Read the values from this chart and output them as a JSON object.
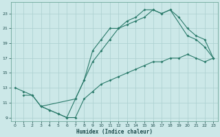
{
  "xlabel": "Humidex (Indice chaleur)",
  "bg_color": "#cce8e8",
  "grid_color": "#aacfcf",
  "line_color": "#2a7a6a",
  "xlim": [
    -0.5,
    23.5
  ],
  "ylim": [
    8.5,
    24.5
  ],
  "xticks": [
    0,
    1,
    2,
    3,
    4,
    5,
    6,
    7,
    8,
    9,
    10,
    11,
    12,
    13,
    14,
    15,
    16,
    17,
    18,
    19,
    20,
    21,
    22,
    23
  ],
  "yticks": [
    9,
    11,
    13,
    15,
    17,
    19,
    21,
    23
  ],
  "line1_x": [
    0,
    1,
    2,
    3,
    7,
    8,
    9,
    10,
    11,
    12,
    13,
    14,
    15,
    16,
    17,
    18,
    20,
    21,
    22,
    23
  ],
  "line1_y": [
    13,
    12.5,
    12,
    10.5,
    11.5,
    14,
    18,
    19.5,
    21,
    21,
    22,
    22.5,
    23.5,
    23.5,
    23,
    23.5,
    20,
    19.5,
    18.5,
    17
  ],
  "line2_x": [
    3,
    4,
    5,
    6,
    7,
    8,
    9,
    10,
    11,
    12,
    13,
    14,
    15,
    16,
    17,
    18,
    19,
    20,
    21,
    22,
    23
  ],
  "line2_y": [
    10.5,
    10,
    9.5,
    9,
    11.5,
    14,
    16.5,
    18,
    19.5,
    21,
    21.5,
    22,
    22.5,
    23.5,
    23,
    23.5,
    22.5,
    21,
    20,
    19.5,
    17
  ],
  "line3_x": [
    1,
    2,
    3,
    4,
    5,
    6,
    7,
    8,
    9,
    10,
    11,
    12,
    13,
    14,
    15,
    16,
    17,
    18,
    19,
    20,
    21,
    22,
    23
  ],
  "line3_y": [
    12,
    12,
    10.5,
    10,
    9.5,
    9,
    9,
    11.5,
    12.5,
    13.5,
    14,
    14.5,
    15,
    15.5,
    16,
    16.5,
    16.5,
    17,
    17,
    17.5,
    17,
    16.5,
    17
  ]
}
